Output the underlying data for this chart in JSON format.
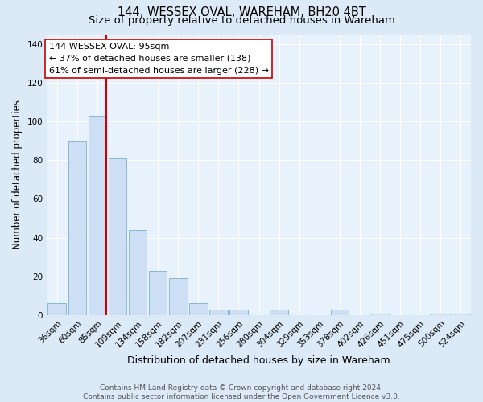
{
  "title": "144, WESSEX OVAL, WAREHAM, BH20 4BT",
  "subtitle": "Size of property relative to detached houses in Wareham",
  "xlabel": "Distribution of detached houses by size in Wareham",
  "ylabel": "Number of detached properties",
  "bar_labels": [
    "36sqm",
    "60sqm",
    "85sqm",
    "109sqm",
    "134sqm",
    "158sqm",
    "182sqm",
    "207sqm",
    "231sqm",
    "256sqm",
    "280sqm",
    "304sqm",
    "329sqm",
    "353sqm",
    "378sqm",
    "402sqm",
    "426sqm",
    "451sqm",
    "475sqm",
    "500sqm",
    "524sqm"
  ],
  "bar_values": [
    6,
    90,
    103,
    81,
    44,
    23,
    19,
    6,
    3,
    3,
    0,
    3,
    0,
    0,
    3,
    0,
    1,
    0,
    0,
    1,
    1
  ],
  "bar_color": "#ccdff5",
  "bar_edge_color": "#7aafd4",
  "vline_color": "#cc0000",
  "vline_pos": 2.43,
  "ylim": [
    0,
    145
  ],
  "yticks": [
    0,
    20,
    40,
    60,
    80,
    100,
    120,
    140
  ],
  "annotation_box_text": "144 WESSEX OVAL: 95sqm\n← 37% of detached houses are smaller (138)\n61% of semi-detached houses are larger (228) →",
  "footer_line1": "Contains HM Land Registry data © Crown copyright and database right 2024.",
  "footer_line2": "Contains public sector information licensed under the Open Government Licence v3.0.",
  "bg_color": "#dce9f7",
  "plot_bg_color": "#e8f2fc",
  "grid_color": "#ffffff",
  "title_fontsize": 10.5,
  "subtitle_fontsize": 9.5,
  "xlabel_fontsize": 9,
  "ylabel_fontsize": 8.5,
  "tick_fontsize": 7.5,
  "ann_fontsize": 8,
  "footer_fontsize": 6.5
}
